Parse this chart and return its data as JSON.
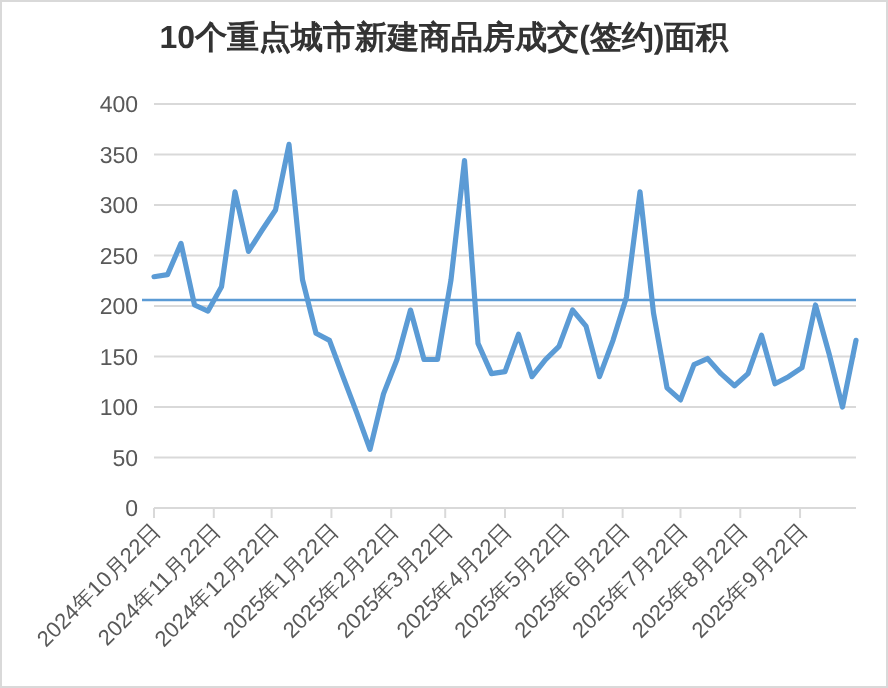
{
  "chart_data": {
    "type": "line",
    "title": "10个重点城市新建商品房成交(签约)面积",
    "x": [
      "2024-10-22",
      "2024-10-29",
      "2024-11-05",
      "2024-11-12",
      "2024-11-19",
      "2024-11-26",
      "2024-12-03",
      "2024-12-10",
      "2024-12-17",
      "2024-12-24",
      "2024-12-31",
      "2025-01-07",
      "2025-01-14",
      "2025-01-21",
      "2025-01-28",
      "2025-02-04",
      "2025-02-11",
      "2025-02-18",
      "2025-02-25",
      "2025-03-04",
      "2025-03-11",
      "2025-03-18",
      "2025-03-25",
      "2025-04-01",
      "2025-04-08",
      "2025-04-15",
      "2025-04-22",
      "2025-04-29",
      "2025-05-06",
      "2025-05-13",
      "2025-05-20",
      "2025-05-27",
      "2025-06-03",
      "2025-06-10",
      "2025-06-17",
      "2025-06-24",
      "2025-07-01",
      "2025-07-08",
      "2025-07-15",
      "2025-07-22",
      "2025-07-29",
      "2025-08-05",
      "2025-08-12",
      "2025-08-19",
      "2025-08-26",
      "2025-09-02",
      "2025-09-09",
      "2025-09-16",
      "2025-09-23",
      "2025-09-30",
      "2025-10-07",
      "2025-10-14",
      "2025-10-21"
    ],
    "series": [
      {
        "color": "#5b9bd5",
        "values": [
          229,
          231,
          262,
          201,
          195,
          219,
          313,
          254,
          275,
          295,
          360,
          226,
          173,
          166,
          130,
          95,
          58,
          113,
          147,
          196,
          147,
          147,
          226,
          344,
          163,
          133,
          135,
          172,
          130,
          147,
          160,
          196,
          180,
          130,
          166,
          209,
          313,
          193,
          119,
          107,
          142,
          148,
          133,
          121,
          133,
          171,
          123,
          130,
          139,
          201,
          153,
          100,
          166
        ]
      }
    ],
    "xlim": [
      "2024-10-22",
      "2025-10-21"
    ],
    "xticks": [
      {
        "value": "2024-10-22",
        "label": "2024年10月22日"
      },
      {
        "value": "2024-11-22",
        "label": "2024年11月22日"
      },
      {
        "value": "2024-12-22",
        "label": "2024年12月22日"
      },
      {
        "value": "2025-01-22",
        "label": "2025年1月22日"
      },
      {
        "value": "2025-02-22",
        "label": "2025年2月22日"
      },
      {
        "value": "2025-03-22",
        "label": "2025年3月22日"
      },
      {
        "value": "2025-04-22",
        "label": "2025年4月22日"
      },
      {
        "value": "2025-05-22",
        "label": "2025年5月22日"
      },
      {
        "value": "2025-06-22",
        "label": "2025年6月22日"
      },
      {
        "value": "2025-07-22",
        "label": "2025年7月22日"
      },
      {
        "value": "2025-08-22",
        "label": "2025年8月22日"
      },
      {
        "value": "2025-09-22",
        "label": "2025年9月22日"
      }
    ],
    "ylim": [
      0,
      400
    ],
    "yticks": [
      0,
      50,
      100,
      150,
      200,
      250,
      300,
      350,
      400
    ],
    "ref_lines": [
      {
        "axis": "y",
        "value": 206,
        "color": "#5b9bd5"
      }
    ],
    "grid": "y",
    "marker": "none",
    "line_style": "solid"
  }
}
